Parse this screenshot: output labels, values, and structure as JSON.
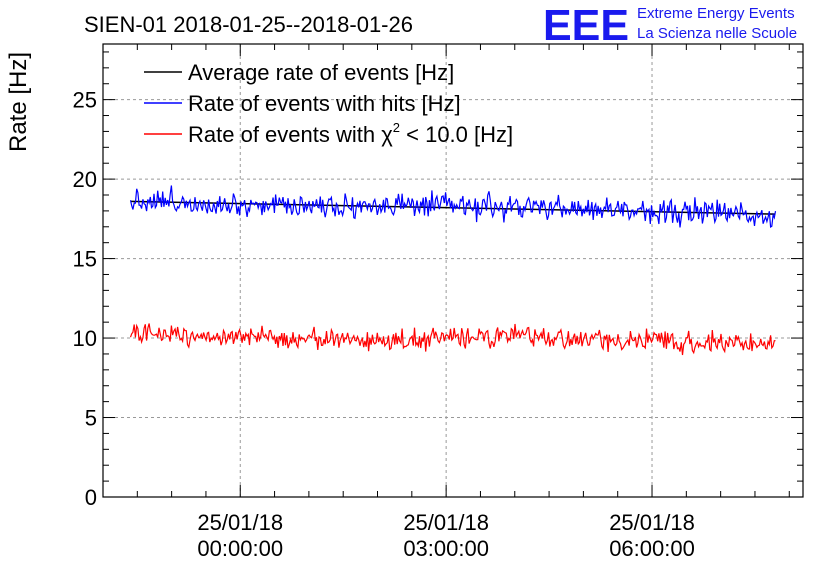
{
  "chart_data": {
    "type": "line",
    "title": "SIEN-01 2018-01-25--2018-01-26",
    "ylabel": "Rate [Hz]",
    "xlabel": "",
    "ylim": [
      0,
      28.5
    ],
    "y_ticks": [
      0,
      5,
      10,
      15,
      20,
      25
    ],
    "x_range_hours": [
      -2.0,
      8.2
    ],
    "x_ticks": [
      {
        "hour": 0,
        "date": "25/01/18",
        "time": "00:00:00"
      },
      {
        "hour": 3,
        "date": "25/01/18",
        "time": "03:00:00"
      },
      {
        "hour": 6,
        "date": "25/01/18",
        "time": "06:00:00"
      }
    ],
    "grid": true,
    "legend_position": "top-left",
    "series": [
      {
        "name": "Average rate of events [Hz]",
        "color": "#000000",
        "style": "mean",
        "x_hours": [
          -1.6,
          7.8
        ],
        "values": [
          18.6,
          17.8
        ]
      },
      {
        "name": "Rate of events with hits [Hz]",
        "color": "#0000ff",
        "style": "noisy",
        "x_hours": [
          -1.6,
          -1.0,
          0.0,
          1.0,
          2.0,
          3.0,
          4.0,
          5.0,
          6.0,
          7.0,
          7.8
        ],
        "values": [
          18.7,
          18.6,
          18.4,
          18.4,
          18.3,
          18.3,
          18.2,
          18.1,
          18.0,
          17.9,
          17.7
        ],
        "noise": 0.55
      },
      {
        "name_prefix": "Rate of events with ",
        "name_symbol": "χ",
        "name_sup": "2",
        "name_suffix": " < 10.0 [Hz]",
        "color": "#ff0000",
        "style": "noisy",
        "x_hours": [
          -1.6,
          -1.0,
          0.0,
          1.0,
          2.0,
          3.0,
          4.0,
          5.0,
          6.0,
          7.0,
          7.8
        ],
        "values": [
          10.2,
          10.3,
          10.0,
          10.0,
          9.8,
          10.0,
          10.1,
          9.9,
          9.8,
          9.7,
          9.6
        ],
        "noise": 0.45
      }
    ]
  },
  "logo": {
    "mark": "EEE",
    "line1": "Extreme Energy Events",
    "line2": "La Scienza nelle Scuole"
  }
}
